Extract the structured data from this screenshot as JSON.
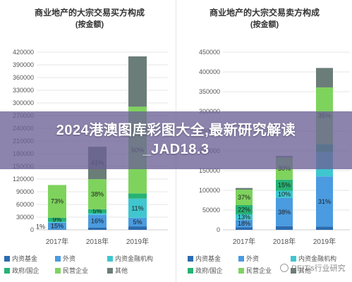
{
  "banner": {
    "line1": "2024港澳图库彩图大全,最新研究解读",
    "line2": "_JAD18.3"
  },
  "watermark": {
    "text": "REIT's行业研究"
  },
  "colors": {
    "axis": "#cccccc",
    "grid": "#e4e4e4",
    "text": "#555555",
    "title": "#333333"
  },
  "chart_data": [
    {
      "type": "bar",
      "stacked": true,
      "title": "商业地产的大宗交易买方构成",
      "subtitle": "(按金额)",
      "xlabel": "",
      "ylabel": "",
      "ylim": [
        0,
        420000
      ],
      "yticks": [
        0,
        30000,
        60000,
        90000,
        120000,
        150000,
        180000,
        210000,
        240000,
        270000,
        300000,
        330000,
        360000,
        390000,
        420000
      ],
      "yticklabels": [
        "0",
        "30000",
        "60000",
        "90000",
        "120000",
        "150000",
        "180000",
        "210000",
        "240000",
        "270000",
        "300000",
        "330000",
        "360000",
        "390000",
        "420000"
      ],
      "categories": [
        "2017年",
        "2018年",
        "2019年"
      ],
      "totals": [
        106000,
        187000,
        410000
      ],
      "grid": true,
      "legend_position": "bottom",
      "series": [
        {
          "name": "内资基金",
          "color": "#2b6cb0",
          "shares": [
            0.01,
            0.03,
            0.02
          ],
          "labels": [
            "1%",
            "",
            ""
          ]
        },
        {
          "name": "外资",
          "color": "#4a9be0",
          "shares": [
            0.15,
            0.16,
            0.05
          ],
          "labels": [
            "15%",
            "16%",
            "5%"
          ]
        },
        {
          "name": "内资金融机构",
          "color": "#3fc6cf",
          "shares": [
            0.02,
            0.02,
            0.11
          ],
          "labels": [
            "",
            "",
            "11%"
          ]
        },
        {
          "name": "政府/国企",
          "color": "#26b374",
          "shares": [
            0.09,
            0.05,
            0.03
          ],
          "labels": [
            "9%",
            "5%",
            ""
          ]
        },
        {
          "name": "民营企业",
          "color": "#7ed35d",
          "shares": [
            0.73,
            0.38,
            0.5
          ],
          "labels": [
            "73%",
            "38%",
            "50%"
          ]
        },
        {
          "name": "其他",
          "color": "#6b7d78",
          "shares": [
            0.0,
            0.41,
            0.29
          ],
          "labels": [
            "",
            "41%",
            ""
          ]
        }
      ]
    },
    {
      "type": "bar",
      "stacked": true,
      "title": "商业地产的大宗交易卖方构成",
      "subtitle": "(按金额)",
      "xlabel": "",
      "ylabel": "",
      "ylim": [
        0,
        450000
      ],
      "yticks": [
        0,
        50000,
        100000,
        150000,
        200000,
        250000,
        300000,
        350000,
        400000,
        450000
      ],
      "yticklabels": [
        "0",
        "50000",
        "100000",
        "150000",
        "200000",
        "250000",
        "300000",
        "350000",
        "400000",
        "450000"
      ],
      "categories": [
        "2017年",
        "2018年",
        "2019年"
      ],
      "totals": [
        106000,
        187000,
        410000
      ],
      "grid": true,
      "legend_position": "bottom",
      "series": [
        {
          "name": "内资基金",
          "color": "#2b6cb0",
          "shares": [
            0.06,
            0.05,
            0.02
          ],
          "labels": [
            "",
            "",
            ""
          ]
        },
        {
          "name": "外资",
          "color": "#4a9be0",
          "shares": [
            0.18,
            0.38,
            0.31
          ],
          "labels": [
            "18%",
            "38%",
            "31%"
          ]
        },
        {
          "name": "内资金融机构",
          "color": "#3fc6cf",
          "shares": [
            0.13,
            0.1,
            0.15
          ],
          "labels": [
            "13%",
            "10%",
            ""
          ]
        },
        {
          "name": "政府/国企",
          "color": "#26b374",
          "shares": [
            0.22,
            0.15,
            0.05
          ],
          "labels": [
            "22%",
            "15%",
            ""
          ]
        },
        {
          "name": "民营企业",
          "color": "#7ed35d",
          "shares": [
            0.37,
            0.3,
            0.35
          ],
          "labels": [
            "37%",
            "30%",
            "35%"
          ]
        },
        {
          "name": "其他",
          "color": "#6b7d78",
          "shares": [
            0.04,
            0.02,
            0.12
          ],
          "labels": [
            "",
            "",
            ""
          ]
        }
      ]
    }
  ]
}
